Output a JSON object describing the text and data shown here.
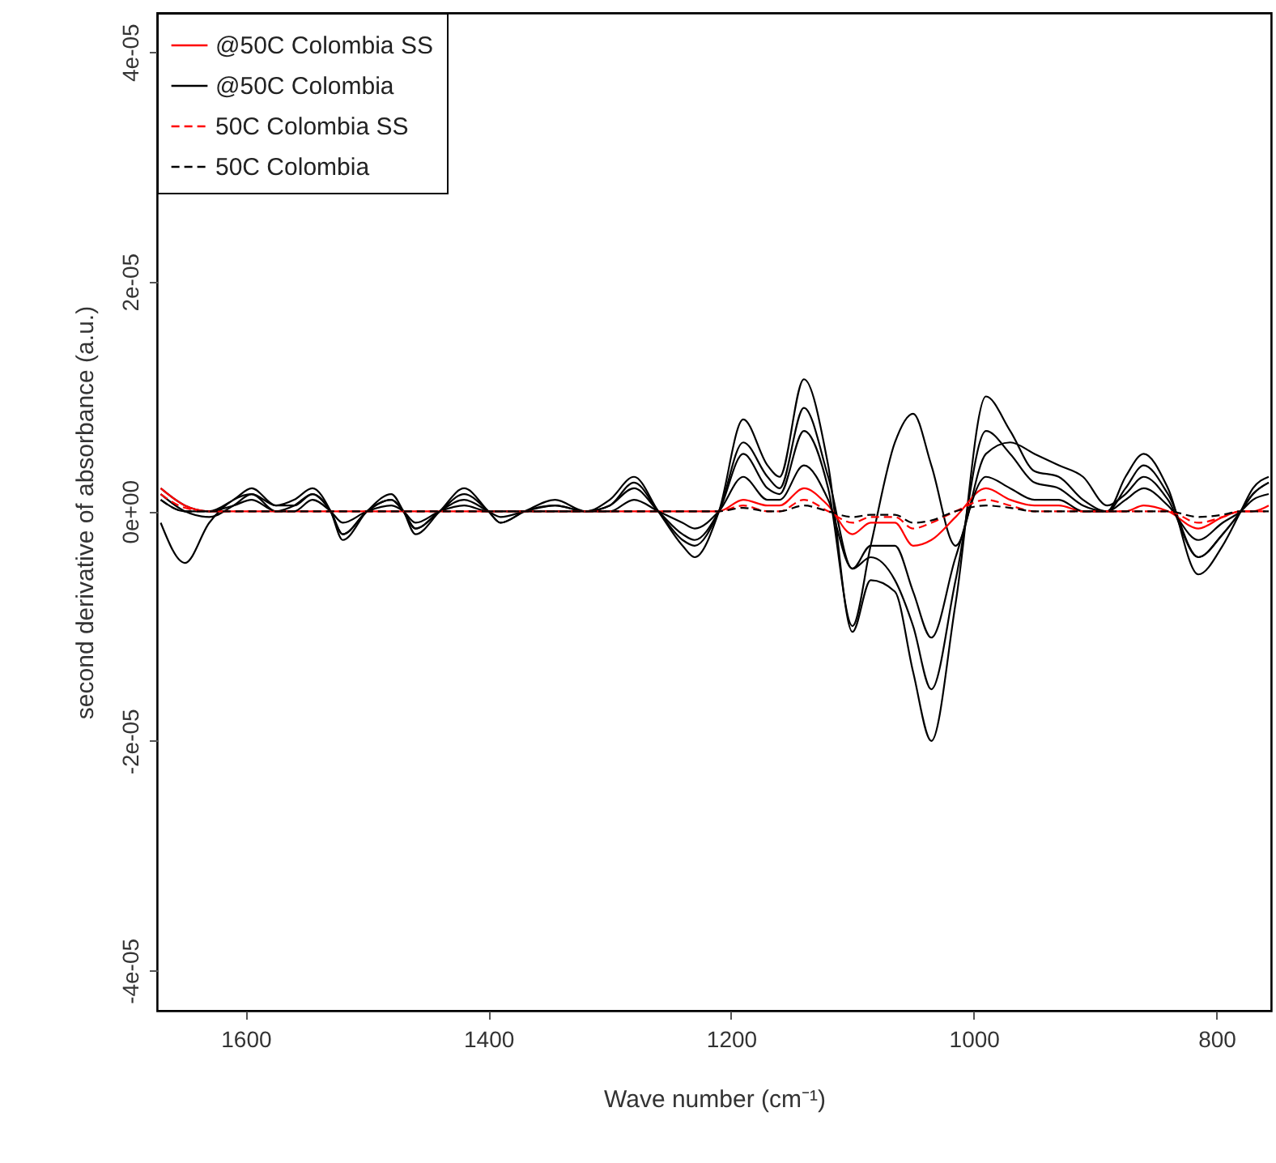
{
  "chart_data": {
    "type": "line",
    "xlabel": "Wave number (cm⁻¹)",
    "ylabel": "second derivative of absorbance (a.u.)",
    "x": [
      1670,
      1650,
      1630,
      1610,
      1595,
      1575,
      1560,
      1545,
      1530,
      1520,
      1500,
      1480,
      1470,
      1460,
      1440,
      1420,
      1400,
      1390,
      1370,
      1345,
      1320,
      1300,
      1280,
      1260,
      1240,
      1230,
      1210,
      1190,
      1170,
      1160,
      1140,
      1120,
      1100,
      1085,
      1065,
      1050,
      1035,
      1015,
      990,
      970,
      950,
      930,
      910,
      890,
      875,
      860,
      840,
      815,
      795,
      780,
      770,
      757
    ],
    "xlim": [
      1673,
      755
    ],
    "xticks": [
      1600,
      1400,
      1200,
      1000,
      800
    ],
    "ylim": [
      -4.35e-05,
      4.34e-05
    ],
    "yticks": [
      {
        "value": 4e-05,
        "label": "4e-05"
      },
      {
        "value": 2e-05,
        "label": "2e-05"
      },
      {
        "value": 0,
        "label": "0e+00"
      },
      {
        "value": -2e-05,
        "label": "-2e-05"
      },
      {
        "value": -4e-05,
        "label": "-4e-05"
      }
    ],
    "grid": false,
    "legend": "top left",
    "marker": "none",
    "series": [
      {
        "color": "#000000",
        "line_style": "solid",
        "values": [
          2e-06,
          5e-07,
          0,
          1e-06,
          2e-06,
          5e-07,
          1e-06,
          2e-06,
          0,
          -2.5e-06,
          0,
          1.5e-06,
          0,
          -2e-06,
          0,
          2e-06,
          0,
          -1e-06,
          0,
          1e-06,
          0,
          1e-06,
          3e-06,
          0,
          -3e-06,
          -4e-06,
          0,
          8e-06,
          4e-06,
          3e-06,
          1.15e-05,
          4e-06,
          -1.05e-05,
          -6e-06,
          -7e-06,
          -1.4e-05,
          -2e-05,
          -8e-06,
          1e-05,
          7e-06,
          3.5e-06,
          3e-06,
          1e-06,
          0,
          3e-06,
          5e-06,
          2e-06,
          -5.5e-06,
          -3e-06,
          0,
          2e-06,
          3e-06
        ]
      },
      {
        "color": "#000000",
        "line_style": "solid",
        "values": [
          -1e-06,
          -4.5e-06,
          -1e-06,
          1e-06,
          1.5e-06,
          5e-07,
          5e-07,
          1.5e-06,
          0,
          -2e-06,
          0,
          1e-06,
          0,
          -1.5e-06,
          0,
          1e-06,
          0,
          -5e-07,
          0,
          5e-07,
          0,
          5e-07,
          2e-06,
          0,
          -2e-06,
          -2.5e-06,
          0,
          5e-06,
          2e-06,
          1.5e-06,
          7e-06,
          2e-06,
          -1e-05,
          -3e-06,
          6e-06,
          8.5e-06,
          4e-06,
          -3e-06,
          5e-06,
          6e-06,
          5e-06,
          4e-06,
          3e-06,
          5e-07,
          1.5e-06,
          3e-06,
          1e-06,
          -4e-06,
          -2e-06,
          0,
          1.5e-06,
          2.5e-06
        ]
      },
      {
        "color": "#000000",
        "line_style": "solid",
        "values": [
          1.5e-06,
          0,
          -5e-07,
          5e-07,
          1.5e-06,
          0,
          5e-07,
          1.5e-06,
          0,
          -2e-06,
          0,
          1e-06,
          0,
          -1.5e-06,
          0,
          1.5e-06,
          0,
          -1e-06,
          0,
          5e-07,
          0,
          5e-07,
          2.5e-06,
          0,
          -2.5e-06,
          -3e-06,
          0,
          6e-06,
          3e-06,
          2e-06,
          9e-06,
          3e-06,
          -5e-06,
          -4e-06,
          -6e-06,
          -1e-05,
          -1.55e-05,
          -6e-06,
          7e-06,
          5e-06,
          2.5e-06,
          2e-06,
          5e-07,
          0,
          2e-06,
          4e-06,
          1.5e-06,
          -4e-06,
          -2e-06,
          0,
          1.5e-06,
          2.5e-06
        ]
      },
      {
        "name": "@50C Colombia SS",
        "color": "#ff0000",
        "line_style": "solid",
        "values": [
          2e-06,
          5e-07,
          0,
          0,
          0,
          0,
          0,
          0,
          0,
          0,
          0,
          0,
          0,
          0,
          0,
          0,
          0,
          0,
          0,
          0,
          0,
          0,
          0,
          0,
          0,
          0,
          0,
          1e-06,
          5e-07,
          5e-07,
          2e-06,
          5e-07,
          -2e-06,
          -1e-06,
          -1e-06,
          -3e-06,
          -2.5e-06,
          -5e-07,
          2e-06,
          1e-06,
          5e-07,
          5e-07,
          0,
          0,
          0,
          5e-07,
          0,
          -1.5e-06,
          -5e-07,
          0,
          0,
          5e-07
        ]
      },
      {
        "name": "@50C Colombia",
        "color": "#000000",
        "line_style": "solid",
        "values": [
          1e-06,
          0,
          0,
          5e-07,
          1e-06,
          0,
          0,
          1e-06,
          0,
          -1e-06,
          0,
          5e-07,
          0,
          -1e-06,
          0,
          5e-07,
          0,
          0,
          0,
          0,
          0,
          0,
          1e-06,
          0,
          -1e-06,
          -1.5e-06,
          0,
          3e-06,
          1e-06,
          1e-06,
          4e-06,
          1e-06,
          -5e-06,
          -3e-06,
          -3e-06,
          -7e-06,
          -1.1e-05,
          -4e-06,
          3e-06,
          2e-06,
          1e-06,
          1e-06,
          0,
          0,
          1e-06,
          2e-06,
          5e-07,
          -2.5e-06,
          -1e-06,
          0,
          1e-06,
          1.5e-06
        ]
      },
      {
        "name": "50C Colombia SS",
        "color": "#ff0000",
        "line_style": "dashed",
        "values": [
          1.5e-06,
          3e-07,
          0,
          0,
          0,
          0,
          0,
          0,
          0,
          0,
          0,
          0,
          0,
          0,
          0,
          0,
          0,
          0,
          0,
          0,
          0,
          0,
          0,
          0,
          0,
          0,
          0,
          5e-07,
          0,
          0,
          1e-06,
          0,
          -1e-06,
          -5e-07,
          -5e-07,
          -1.5e-06,
          -1e-06,
          0,
          1e-06,
          5e-07,
          0,
          0,
          0,
          0,
          0,
          0,
          0,
          -1e-06,
          -5e-07,
          0,
          0,
          0
        ]
      },
      {
        "name": "50C Colombia",
        "color": "#000000",
        "line_style": "dashed",
        "values": [
          1e-06,
          0,
          0,
          0,
          0,
          0,
          0,
          0,
          0,
          0,
          0,
          0,
          0,
          0,
          0,
          0,
          0,
          0,
          0,
          0,
          0,
          0,
          0,
          0,
          0,
          0,
          0,
          3e-07,
          0,
          0,
          5e-07,
          0,
          -5e-07,
          -3e-07,
          -3e-07,
          -1e-06,
          -8e-07,
          0,
          5e-07,
          3e-07,
          0,
          0,
          0,
          0,
          0,
          0,
          0,
          -5e-07,
          -3e-07,
          0,
          0,
          0
        ]
      }
    ]
  }
}
